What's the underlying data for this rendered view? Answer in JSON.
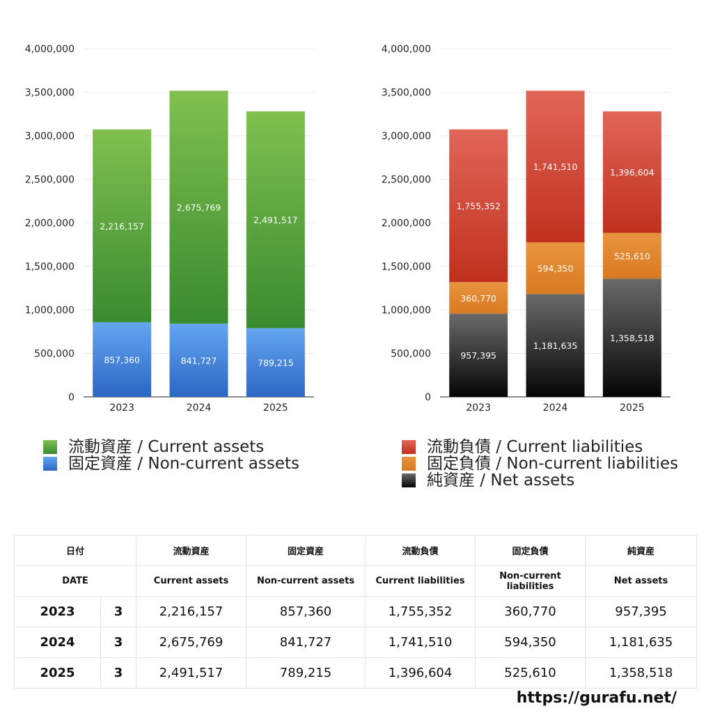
{
  "chart_data": [
    {
      "type": "bar",
      "stacked": true,
      "categories": [
        "2023",
        "2024",
        "2025"
      ],
      "ylim": [
        0,
        4000000
      ],
      "yticks": [
        "0",
        "500,000",
        "1,000,000",
        "1,500,000",
        "2,000,000",
        "2,500,000",
        "3,000,000",
        "3,500,000",
        "4,000,000"
      ],
      "grid": true,
      "series": [
        {
          "name": "固定資産 / Non-current assets",
          "values": [
            857360,
            841727,
            789215
          ],
          "color": "#3a7bd5"
        },
        {
          "name": "流動資産 / Current assets",
          "values": [
            2216157,
            2675769,
            2491517
          ],
          "color": "#4a9a3a"
        }
      ],
      "data_labels": [
        [
          "857,360",
          "841,727",
          "789,215"
        ],
        [
          "2,216,157",
          "2,675,769",
          "2,491,517"
        ]
      ]
    },
    {
      "type": "bar",
      "stacked": true,
      "categories": [
        "2023",
        "2024",
        "2025"
      ],
      "ylim": [
        0,
        4000000
      ],
      "yticks": [
        "0",
        "500,000",
        "1,000,000",
        "1,500,000",
        "2,000,000",
        "2,500,000",
        "3,000,000",
        "3,500,000",
        "4,000,000"
      ],
      "grid": true,
      "series": [
        {
          "name": "純資産 / Net assets",
          "values": [
            957395,
            1181635,
            1358518
          ],
          "color": "#333333"
        },
        {
          "name": "固定負債 / Non-current liabilities",
          "values": [
            360770,
            594350,
            525610
          ],
          "color": "#e08a30"
        },
        {
          "name": "流動負債 / Current liabilities",
          "values": [
            1755352,
            1741510,
            1396604
          ],
          "color": "#cc3d2c"
        }
      ],
      "data_labels": [
        [
          "957,395",
          "1,181,635",
          "1,358,518"
        ],
        [
          "360,770",
          "594,350",
          "525,610"
        ],
        [
          "1,755,352",
          "1,741,510",
          "1,396,604"
        ]
      ]
    }
  ],
  "legend_left": [
    {
      "label": "流動資産 / Current assets",
      "color": "#4a9a3a"
    },
    {
      "label": "固定資産 / Non-current assets",
      "color": "#3a7bd5"
    }
  ],
  "legend_right": [
    {
      "label": "流動負債 / Current liabilities",
      "color": "#cc3d2c"
    },
    {
      "label": "固定負債 / Non-current liabilities",
      "color": "#e08a30"
    },
    {
      "label": "純資産 / Net assets",
      "color": "#333333"
    }
  ],
  "table": {
    "header_jp": [
      "日付",
      "流動資産",
      "固定資産",
      "流動負債",
      "固定負債",
      "純資産"
    ],
    "header_en": [
      "DATE",
      "Current assets",
      "Non-current assets",
      "Current liabilities",
      "Non-current liabilities",
      "Net assets"
    ],
    "rows": [
      {
        "year": "2023",
        "month": "3",
        "values": [
          "2,216,157",
          "857,360",
          "1,755,352",
          "360,770",
          "957,395"
        ]
      },
      {
        "year": "2024",
        "month": "3",
        "values": [
          "2,675,769",
          "841,727",
          "1,741,510",
          "594,350",
          "1,181,635"
        ]
      },
      {
        "year": "2025",
        "month": "3",
        "values": [
          "2,491,517",
          "789,215",
          "1,396,604",
          "525,610",
          "1,358,518"
        ]
      }
    ]
  },
  "footer_url": "https://gurafu.net/"
}
